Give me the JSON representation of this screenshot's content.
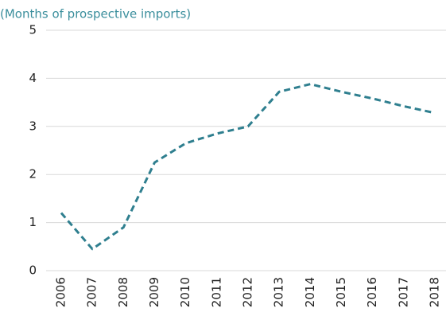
{
  "chart_data": {
    "type": "line",
    "subtitle": "(Months of prospective imports)",
    "categories": [
      "2006",
      "2007",
      "2008",
      "2009",
      "2010",
      "2011",
      "2012",
      "2013",
      "2014",
      "2015",
      "2016",
      "2017",
      "2018"
    ],
    "values": [
      1.2,
      0.45,
      0.9,
      2.25,
      2.65,
      2.85,
      3.0,
      3.72,
      3.88,
      3.72,
      3.58,
      3.42,
      3.28
    ],
    "color": "#2f7f8f",
    "dashed": true,
    "ylim": [
      0,
      5
    ],
    "yticks": [
      0,
      1,
      2,
      3,
      4,
      5
    ],
    "grid": true
  }
}
